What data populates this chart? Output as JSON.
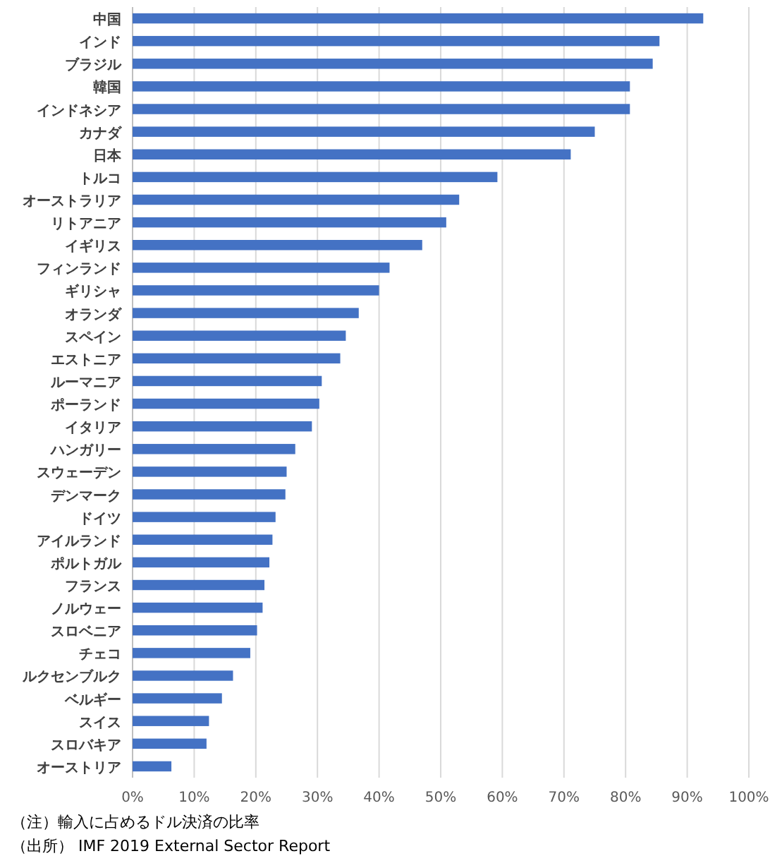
{
  "chart_data": {
    "type": "bar",
    "orientation": "horizontal",
    "categories": [
      "中国",
      "インド",
      "ブラジル",
      "韓国",
      "インドネシア",
      "カナダ",
      "日本",
      "トルコ",
      "オーストラリア",
      "リトアニア",
      "イギリス",
      "フィンランド",
      "ギリシャ",
      "オランダ",
      "スペイン",
      "エストニア",
      "ルーマニア",
      "ポーランド",
      "イタリア",
      "ハンガリー",
      "スウェーデン",
      "デンマーク",
      "ドイツ",
      "アイルランド",
      "ポルトガル",
      "フランス",
      "ノルウェー",
      "スロベニア",
      "チェコ",
      "ルクセンブルク",
      "ベルギー",
      "スイス",
      "スロバキア",
      "オーストリア"
    ],
    "values": [
      92.6,
      85.5,
      84.4,
      80.7,
      80.7,
      75.0,
      71.1,
      59.2,
      53.0,
      50.9,
      47.0,
      41.7,
      40.0,
      36.7,
      34.6,
      33.7,
      30.7,
      30.3,
      29.1,
      26.4,
      25.0,
      24.8,
      23.2,
      22.7,
      22.2,
      21.4,
      21.1,
      20.2,
      19.1,
      16.3,
      14.5,
      12.4,
      12.0,
      6.3
    ],
    "color": "#4472c4",
    "xlim": [
      0,
      100
    ],
    "xticks": [
      {
        "value": 0,
        "label": "0%"
      },
      {
        "value": 10,
        "label": "10%"
      },
      {
        "value": 20,
        "label": "20%"
      },
      {
        "value": 30,
        "label": "30%"
      },
      {
        "value": 40,
        "label": "40%"
      },
      {
        "value": 50,
        "label": "50%"
      },
      {
        "value": 60,
        "label": "60%"
      },
      {
        "value": 70,
        "label": "70%"
      },
      {
        "value": 80,
        "label": "80%"
      },
      {
        "value": 90,
        "label": "90%"
      },
      {
        "value": 100,
        "label": "100%"
      }
    ],
    "grid": "x",
    "annotations": [
      "（注）輸入に占めるドル決済の比率",
      "（出所） IMF 2019 External Sector Report"
    ]
  }
}
